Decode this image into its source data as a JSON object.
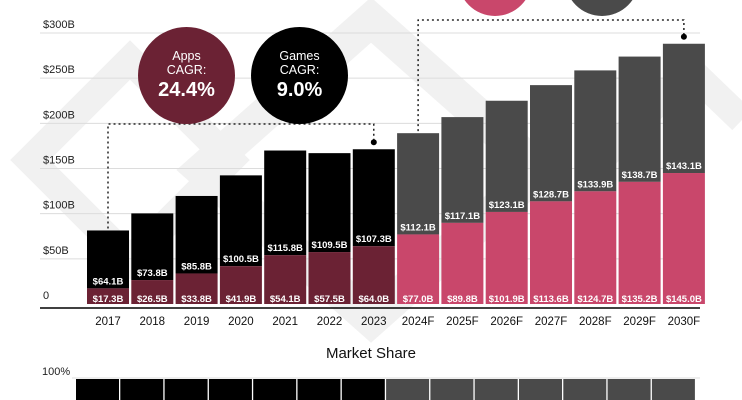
{
  "colors": {
    "apps": "#c9476b",
    "apps_historical": "#6b2234",
    "games": "#4a4a4a",
    "games_historical": "#000000",
    "badge_apps": "#6b2234",
    "badge_games": "#000000",
    "watermark": "#f1f1f1"
  },
  "badges": {
    "apps": {
      "line1": "Apps",
      "line2": "CAGR:",
      "value": "24.4%"
    },
    "games": {
      "line1": "Games",
      "line2": "CAGR:",
      "value": "9.0%"
    }
  },
  "chart_data": {
    "type": "bar",
    "stacked": true,
    "categories": [
      "2017",
      "2018",
      "2019",
      "2020",
      "2021",
      "2022",
      "2023",
      "2024F",
      "2025F",
      "2026F",
      "2027F",
      "2028F",
      "2029F",
      "2030F"
    ],
    "forecast_start_index": 7,
    "series": [
      {
        "key": "apps",
        "values": [
          17.3,
          26.5,
          33.8,
          41.9,
          54.1,
          57.5,
          64.0,
          77.0,
          89.8,
          101.9,
          113.6,
          124.7,
          135.2,
          145.0
        ],
        "labels": [
          "$17.3B",
          "$26.5B",
          "$33.8B",
          "$41.9B",
          "$54.1B",
          "$57.5B",
          "$64.0B",
          "$77.0B",
          "$89.8B",
          "$101.9B",
          "$113.6B",
          "$124.7B",
          "$135.2B",
          "$145.0B"
        ]
      },
      {
        "key": "games",
        "values": [
          64.1,
          73.8,
          85.8,
          100.5,
          115.8,
          109.5,
          107.3,
          112.1,
          117.1,
          123.1,
          128.7,
          133.9,
          138.7,
          143.1
        ],
        "labels": [
          "$64.1B",
          "$73.8B",
          "$85.8B",
          "$100.5B",
          "$115.8B",
          "$109.5B",
          "$107.3B",
          "$112.1B",
          "$117.1B",
          "$123.1B",
          "$128.7B",
          "$133.9B",
          "$138.7B",
          "$143.1B"
        ]
      }
    ],
    "y_ticks": [
      0,
      50,
      100,
      150,
      200,
      250,
      300
    ],
    "y_tick_labels": [
      "0",
      "$50B",
      "$100B",
      "$150B",
      "$200B",
      "$250B",
      "$300B"
    ],
    "ylim": [
      0,
      300
    ],
    "grid": true
  },
  "market_share": {
    "title": "Market Share",
    "y_top_label": "100%"
  }
}
